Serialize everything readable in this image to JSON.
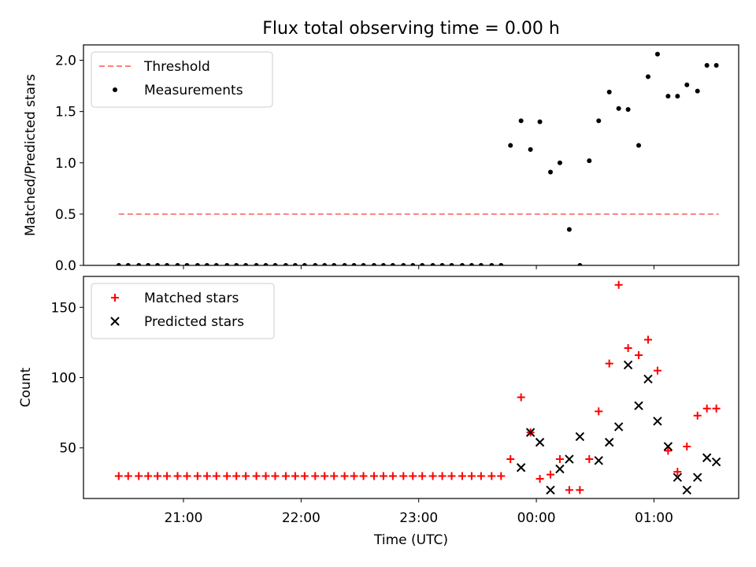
{
  "figure_title": "Flux total observing time = 0.00 h",
  "chart_data": [
    {
      "type": "scatter",
      "ylabel": "Matched/Predicted stars",
      "xlabel": "",
      "ylim": [
        0,
        2.15
      ],
      "yticks": [
        "0.0",
        "0.5",
        "1.0",
        "1.5",
        "2.0"
      ],
      "yticks_values": [
        0,
        0.5,
        1.0,
        1.5,
        2.0
      ],
      "legend_placement": "top-left",
      "series": [
        {
          "name": "Threshold",
          "style": "dashed-line",
          "color": "#ff7f7f",
          "x": [
            20.45,
            25.55
          ],
          "y": [
            0.5,
            0.5
          ]
        },
        {
          "name": "Measurements",
          "style": "dot",
          "color": "#000000",
          "x": [
            20.45,
            20.53,
            20.62,
            20.7,
            20.78,
            20.86,
            20.95,
            21.03,
            21.12,
            21.2,
            21.28,
            21.37,
            21.45,
            21.53,
            21.62,
            21.7,
            21.78,
            21.87,
            21.95,
            22.03,
            22.12,
            22.2,
            22.28,
            22.37,
            22.45,
            22.53,
            22.62,
            22.7,
            22.78,
            22.87,
            22.95,
            23.03,
            23.12,
            23.2,
            23.28,
            23.37,
            23.45,
            23.53,
            23.62,
            23.7,
            23.78,
            23.87,
            23.95,
            24.03,
            24.12,
            24.2,
            24.28,
            24.37,
            24.45,
            24.53,
            24.62,
            24.7,
            24.78,
            24.87,
            24.95,
            25.03,
            25.12,
            25.2,
            25.28,
            25.37,
            25.45,
            25.53
          ],
          "y": [
            0,
            0,
            0,
            0,
            0,
            0,
            0,
            0,
            0,
            0,
            0,
            0,
            0,
            0,
            0,
            0,
            0,
            0,
            0,
            0,
            0,
            0,
            0,
            0,
            0,
            0,
            0,
            0,
            0,
            0,
            0,
            0,
            0,
            0,
            0,
            0,
            0,
            0,
            0,
            0,
            1.17,
            1.41,
            1.13,
            1.4,
            0.91,
            1.0,
            0.35,
            0,
            1.02,
            1.41,
            1.69,
            1.53,
            1.52,
            1.17,
            1.84,
            2.06,
            1.65,
            1.65,
            1.76,
            1.7,
            1.95,
            1.95
          ]
        }
      ]
    },
    {
      "type": "scatter",
      "ylabel": "Count",
      "xlabel": "Time (UTC)",
      "ylim": [
        14,
        172
      ],
      "yticks": [
        "50",
        "100",
        "150"
      ],
      "yticks_values": [
        50,
        100,
        150
      ],
      "xlim": [
        20.15,
        25.72
      ],
      "xticks": [
        "21:00",
        "22:00",
        "23:00",
        "00:00",
        "01:00"
      ],
      "xticks_values": [
        21,
        22,
        23,
        24,
        25
      ],
      "legend_placement": "top-left",
      "series": [
        {
          "name": "Matched stars",
          "marker": "+",
          "color": "#ff0000",
          "x": [
            20.45,
            20.53,
            20.62,
            20.7,
            20.78,
            20.86,
            20.95,
            21.03,
            21.12,
            21.2,
            21.28,
            21.37,
            21.45,
            21.53,
            21.62,
            21.7,
            21.78,
            21.87,
            21.95,
            22.03,
            22.12,
            22.2,
            22.28,
            22.37,
            22.45,
            22.53,
            22.62,
            22.7,
            22.78,
            22.87,
            22.95,
            23.03,
            23.12,
            23.2,
            23.28,
            23.37,
            23.45,
            23.53,
            23.62,
            23.7,
            23.78,
            23.87,
            23.95,
            24.03,
            24.12,
            24.2,
            24.28,
            24.37,
            24.45,
            24.53,
            24.62,
            24.7,
            24.78,
            24.87,
            24.95,
            25.03,
            25.12,
            25.2,
            25.28,
            25.37,
            25.45,
            25.53
          ],
          "y": [
            30,
            30,
            30,
            30,
            30,
            30,
            30,
            30,
            30,
            30,
            30,
            30,
            30,
            30,
            30,
            30,
            30,
            30,
            30,
            30,
            30,
            30,
            30,
            30,
            30,
            30,
            30,
            30,
            30,
            30,
            30,
            30,
            30,
            30,
            30,
            30,
            30,
            30,
            30,
            30,
            42,
            86,
            61,
            28,
            31,
            42,
            20,
            20,
            42,
            76,
            110,
            166,
            121,
            116,
            127,
            105,
            48,
            33,
            51,
            73,
            78,
            78
          ]
        },
        {
          "name": "Predicted stars",
          "marker": "x",
          "color": "#000000",
          "x": [
            23.87,
            23.95,
            24.03,
            24.12,
            24.2,
            24.28,
            24.37,
            24.53,
            24.62,
            24.7,
            24.78,
            24.87,
            24.95,
            25.03,
            25.12,
            25.2,
            25.28,
            25.37,
            25.45,
            25.53
          ],
          "y": [
            36,
            61,
            54,
            20,
            35,
            42,
            58,
            41,
            54,
            65,
            109,
            80,
            99,
            69,
            51,
            29,
            20,
            29,
            43,
            40
          ]
        }
      ]
    }
  ]
}
